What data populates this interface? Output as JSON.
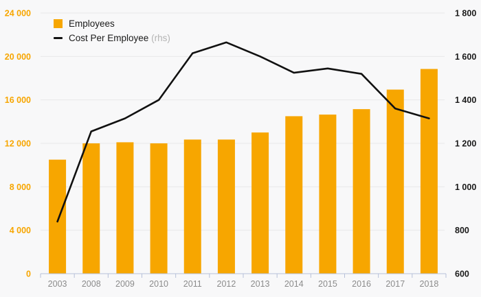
{
  "chart_data": {
    "type": "bar",
    "subtype": "combo-bar-line-dual-axis",
    "title": "",
    "categories": [
      "2003",
      "2008",
      "2009",
      "2010",
      "2011",
      "2012",
      "2013",
      "2014",
      "2015",
      "2016",
      "2017",
      "2018"
    ],
    "series": [
      {
        "name": "Employees",
        "type": "bar",
        "axis": "left",
        "color": "#f7a600",
        "values": [
          10500,
          12000,
          12100,
          12000,
          12350,
          12350,
          13000,
          14500,
          14650,
          15150,
          16950,
          18850
        ]
      },
      {
        "name": "Cost Per Employee",
        "type": "line",
        "axis": "right",
        "color": "#111111",
        "values": [
          840,
          1255,
          1315,
          1400,
          1615,
          1665,
          1600,
          1525,
          1545,
          1520,
          1360,
          1315
        ]
      }
    ],
    "left_axis": {
      "min": 0,
      "max": 24000,
      "step": 4000,
      "tick_labels": [
        "0",
        "4 000",
        "8 000",
        "12 000",
        "16 000",
        "20 000",
        "24 000"
      ],
      "label_color": "#f7a600"
    },
    "right_axis": {
      "min": 600,
      "max": 1800,
      "step": 200,
      "tick_labels": [
        "600",
        "800",
        "1 000",
        "1 200",
        "1 400",
        "1 600",
        "1 800"
      ],
      "label_color": "#1a1a1a"
    },
    "x_axis": {
      "tick_labels": [
        "2003",
        "2008",
        "2009",
        "2010",
        "2011",
        "2012",
        "2013",
        "2014",
        "2015",
        "2016",
        "2017",
        "2018"
      ],
      "label_color": "#8b8b8b"
    },
    "grid": true,
    "legend_position": "top-left"
  },
  "legend": {
    "items": [
      {
        "label": "Employees",
        "suffix": "",
        "swatch": "square"
      },
      {
        "label": "Cost Per Employee",
        "suffix": "(rhs)",
        "swatch": "line"
      }
    ]
  },
  "colors": {
    "background": "#f8f8f9",
    "gridline": "#e9e9e9",
    "axis_line": "#b6c0d9",
    "bar": "#f7a600",
    "line": "#111111",
    "left_labels": "#f7a600",
    "right_labels": "#1a1a1a",
    "x_labels": "#8b8b8b",
    "rhs_suffix": "#b3b3b3"
  }
}
